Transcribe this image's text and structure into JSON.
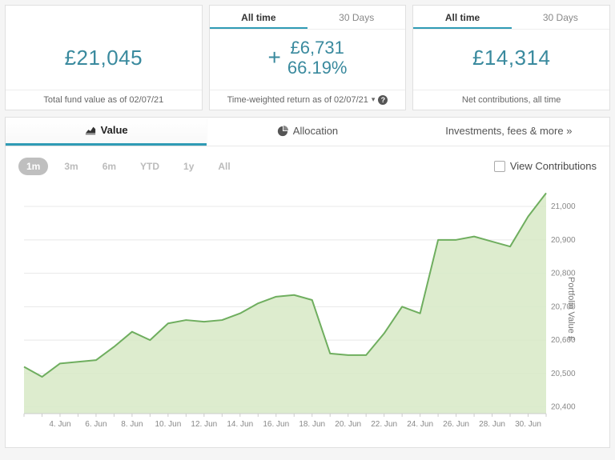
{
  "colors": {
    "accent": "#2f9bb5",
    "value_text": "#3a8a9e",
    "line": "#6fae5f",
    "area_fill": "#d7e9c6",
    "grid": "#e8e8e8",
    "axis_text": "#888888",
    "bg": "#ffffff",
    "range_inactive": "#bbbbbb",
    "range_active_bg": "#bfbfbf"
  },
  "cards": [
    {
      "value": "£21,045",
      "footer": "Total fund value as of 02/07/21",
      "has_tabs": false
    },
    {
      "tabs": [
        "All time",
        "30 Days"
      ],
      "active_tab": 0,
      "return_sign": "+",
      "return_amount": "£6,731",
      "return_pct": "66.19%",
      "footer": "Time-weighted return as of 02/07/21",
      "footer_chevron": true,
      "footer_help": true,
      "has_tabs": true
    },
    {
      "tabs": [
        "All time",
        "30 Days"
      ],
      "active_tab": 0,
      "value": "£14,314",
      "footer": "Net contributions, all time",
      "has_tabs": true
    }
  ],
  "main_tabs": {
    "items": [
      "Value",
      "Allocation",
      "Investments, fees & more »"
    ],
    "active": 0
  },
  "range_buttons": [
    "1m",
    "3m",
    "6m",
    "YTD",
    "1y",
    "All"
  ],
  "range_active": 0,
  "view_contributions_label": "View Contributions",
  "chart": {
    "type": "area",
    "y_axis_label": "Portfolio Value £",
    "y_axis_side": "right",
    "x_labels": [
      "4. Jun",
      "6. Jun",
      "8. Jun",
      "10. Jun",
      "12. Jun",
      "14. Jun",
      "16. Jun",
      "18. Jun",
      "20. Jun",
      "22. Jun",
      "24. Jun",
      "26. Jun",
      "28. Jun",
      "30. Jun"
    ],
    "x_tick_days": [
      2,
      3,
      4,
      5,
      6,
      7,
      8,
      9,
      10,
      11,
      12,
      13,
      14,
      15,
      16,
      17,
      18,
      19,
      20,
      21,
      22,
      23,
      24,
      25,
      26,
      27,
      28,
      29,
      30,
      31
    ],
    "x_label_days": [
      4,
      6,
      8,
      10,
      12,
      14,
      16,
      18,
      20,
      22,
      24,
      26,
      28,
      30
    ],
    "y_ticks": [
      20400,
      20500,
      20600,
      20700,
      20800,
      20900,
      21000
    ],
    "ylim": [
      20380,
      21060
    ],
    "xlim": [
      2,
      31
    ],
    "line_width": 2,
    "line_color": "#6fae5f",
    "fill_color": "#d7e9c6",
    "fill_opacity": 0.85,
    "grid_color": "#e8e8e8",
    "axis_fontsize": 10,
    "series": [
      {
        "x": 2,
        "y": 20520
      },
      {
        "x": 3,
        "y": 20490
      },
      {
        "x": 4,
        "y": 20530
      },
      {
        "x": 5,
        "y": 20535
      },
      {
        "x": 6,
        "y": 20540
      },
      {
        "x": 7,
        "y": 20580
      },
      {
        "x": 8,
        "y": 20625
      },
      {
        "x": 9,
        "y": 20600
      },
      {
        "x": 10,
        "y": 20650
      },
      {
        "x": 11,
        "y": 20660
      },
      {
        "x": 12,
        "y": 20655
      },
      {
        "x": 13,
        "y": 20660
      },
      {
        "x": 14,
        "y": 20680
      },
      {
        "x": 15,
        "y": 20710
      },
      {
        "x": 16,
        "y": 20730
      },
      {
        "x": 17,
        "y": 20735
      },
      {
        "x": 18,
        "y": 20720
      },
      {
        "x": 19,
        "y": 20560
      },
      {
        "x": 20,
        "y": 20555
      },
      {
        "x": 21,
        "y": 20555
      },
      {
        "x": 22,
        "y": 20620
      },
      {
        "x": 23,
        "y": 20700
      },
      {
        "x": 24,
        "y": 20680
      },
      {
        "x": 25,
        "y": 20900
      },
      {
        "x": 26,
        "y": 20900
      },
      {
        "x": 27,
        "y": 20910
      },
      {
        "x": 28,
        "y": 20895
      },
      {
        "x": 29,
        "y": 20880
      },
      {
        "x": 30,
        "y": 20970
      },
      {
        "x": 31,
        "y": 21040
      }
    ]
  }
}
